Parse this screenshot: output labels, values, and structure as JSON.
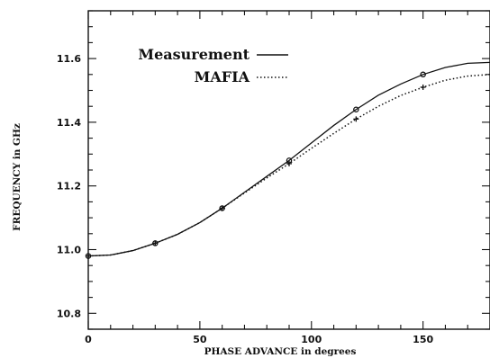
{
  "chart_data": {
    "type": "line",
    "title": "",
    "xlabel": "PHASE ADVANCE in degrees",
    "ylabel": "FREQUENCY in GHz",
    "xlim": [
      0,
      180
    ],
    "ylim": [
      10.75,
      11.75
    ],
    "x_ticks": [
      0,
      50,
      100,
      150
    ],
    "y_ticks": [
      10.8,
      11.0,
      11.2,
      11.4,
      11.6
    ],
    "x_tick_labels": [
      "0",
      "50",
      "100",
      "150"
    ],
    "y_tick_labels": [
      "10.8",
      "11.0",
      "11.2",
      "11.4",
      "11.6"
    ],
    "grid": false,
    "legend_position": "top-left",
    "series": [
      {
        "name": "Measurement",
        "style": "solid",
        "marker": "circle",
        "color": "#111111",
        "points": [
          [
            0,
            10.98
          ],
          [
            30,
            11.02
          ],
          [
            60,
            11.13
          ],
          [
            90,
            11.28
          ],
          [
            120,
            11.44
          ],
          [
            150,
            11.55
          ]
        ],
        "curve": [
          [
            0,
            10.98
          ],
          [
            10,
            10.983
          ],
          [
            20,
            10.997
          ],
          [
            30,
            11.02
          ],
          [
            40,
            11.048
          ],
          [
            50,
            11.085
          ],
          [
            60,
            11.13
          ],
          [
            70,
            11.18
          ],
          [
            80,
            11.23
          ],
          [
            90,
            11.28
          ],
          [
            100,
            11.335
          ],
          [
            110,
            11.39
          ],
          [
            120,
            11.44
          ],
          [
            130,
            11.485
          ],
          [
            140,
            11.52
          ],
          [
            150,
            11.55
          ],
          [
            160,
            11.572
          ],
          [
            170,
            11.585
          ],
          [
            180,
            11.588
          ]
        ]
      },
      {
        "name": "MAFIA",
        "style": "dotted",
        "marker": "plus",
        "color": "#111111",
        "points": [
          [
            0,
            10.98
          ],
          [
            30,
            11.02
          ],
          [
            60,
            11.13
          ],
          [
            90,
            11.27
          ],
          [
            120,
            11.41
          ],
          [
            150,
            11.51
          ]
        ],
        "curve": [
          [
            0,
            10.98
          ],
          [
            10,
            10.983
          ],
          [
            20,
            10.997
          ],
          [
            30,
            11.02
          ],
          [
            40,
            11.048
          ],
          [
            50,
            11.085
          ],
          [
            60,
            11.13
          ],
          [
            70,
            11.178
          ],
          [
            80,
            11.225
          ],
          [
            90,
            11.27
          ],
          [
            100,
            11.318
          ],
          [
            110,
            11.365
          ],
          [
            120,
            11.41
          ],
          [
            130,
            11.45
          ],
          [
            140,
            11.484
          ],
          [
            150,
            11.51
          ],
          [
            160,
            11.532
          ],
          [
            170,
            11.545
          ],
          [
            180,
            11.55
          ]
        ]
      }
    ]
  }
}
